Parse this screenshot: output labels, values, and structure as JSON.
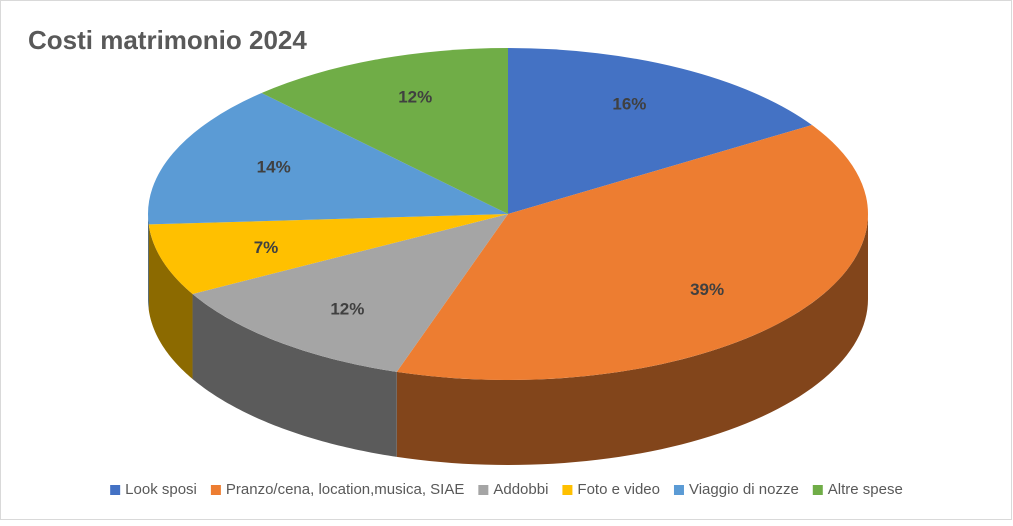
{
  "chart_data": {
    "type": "pie3d",
    "title": "Costi matrimonio 2024",
    "categories": [
      "Look sposi",
      "Pranzo/cena, location,musica, SIAE",
      "Addobbi",
      "Foto e video",
      "Viaggio di nozze",
      "Altre spese"
    ],
    "values": [
      16,
      39,
      12,
      7,
      14,
      12
    ],
    "value_labels": [
      "16%",
      "39%",
      "12%",
      "7%",
      "14%",
      "12%"
    ],
    "colors": [
      "#4472c4",
      "#ed7d31",
      "#a5a5a5",
      "#ffc000",
      "#5b9bd5",
      "#70ad47"
    ],
    "legend": "bottom"
  }
}
